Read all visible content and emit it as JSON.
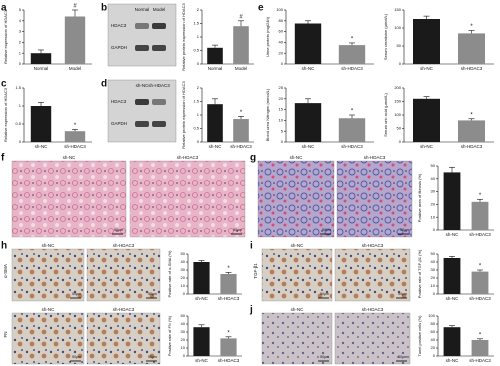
{
  "figure": {
    "panel_letters": [
      "a",
      "b",
      "c",
      "d",
      "e",
      "f",
      "g",
      "h",
      "i",
      "j"
    ],
    "blots": [
      {
        "columns": [
          "Normal",
          "Model"
        ],
        "rows": [
          "HDAC3",
          "GAPDH"
        ]
      },
      {
        "columns": [
          "sh-NC",
          "sh-HDAC3"
        ],
        "rows": [
          "HDAC3",
          "GAPDH"
        ]
      }
    ],
    "micrographs": [
      {
        "groups": [
          "sh-NC",
          "sh-HDAC3"
        ],
        "scale": "50μm"
      },
      {
        "groups": [
          "sh-NC",
          "sh-HDAC3"
        ],
        "scale": "50μm"
      },
      {
        "groups": [
          "sh-NC",
          "sh-HDAC3"
        ],
        "scale": "50μm",
        "row_label": "α-SMA"
      },
      {
        "groups": [
          "sh-NC",
          "sh-HDAC3"
        ],
        "scale": "50μm",
        "row_label": "FN"
      },
      {
        "groups": [
          "sh-NC",
          "sh-HDAC3"
        ],
        "scale": "50μm",
        "row_label": "TGF-β1"
      },
      {
        "groups": [
          "sh-NC",
          "sh-HDAC3"
        ],
        "scale": "50μm"
      }
    ]
  },
  "chart_data": [
    {
      "type": "bar",
      "ylabel": "Relative expression of HDAC3",
      "categories": [
        "Normal",
        "Model"
      ],
      "values": [
        1.0,
        4.4
      ],
      "errors": [
        0.3,
        0.6
      ],
      "colors": [
        "#1a1a1a",
        "#8c8c8c"
      ],
      "ylim": [
        0,
        5
      ],
      "yticks": [
        0,
        1,
        2,
        3,
        4,
        5
      ],
      "significance": "#"
    },
    {
      "type": "bar",
      "ylabel": "Relative protein expression of HDAC3",
      "categories": [
        "Normal",
        "Model"
      ],
      "values": [
        0.6,
        1.4
      ],
      "errors": [
        0.1,
        0.2
      ],
      "colors": [
        "#1a1a1a",
        "#8c8c8c"
      ],
      "ylim": [
        0,
        2
      ],
      "yticks": [
        0,
        0.5,
        1,
        1.5,
        2
      ],
      "significance": "#"
    },
    {
      "type": "bar",
      "ylabel": "Urine protein (mg/24h)",
      "categories": [
        "sh-NC",
        "sh-HDAC3"
      ],
      "values": [
        75,
        35
      ],
      "errors": [
        5,
        4
      ],
      "colors": [
        "#1a1a1a",
        "#8c8c8c"
      ],
      "ylim": [
        0,
        100
      ],
      "yticks": [
        0,
        20,
        40,
        60,
        80,
        100
      ],
      "significance": "*"
    },
    {
      "type": "bar",
      "ylabel": "Serum creatinine (μmol/L)",
      "categories": [
        "sh-NC",
        "sh-HDAC3"
      ],
      "values": [
        125,
        85
      ],
      "errors": [
        8,
        8
      ],
      "colors": [
        "#1a1a1a",
        "#8c8c8c"
      ],
      "ylim": [
        0,
        150
      ],
      "yticks": [
        0,
        50,
        100,
        150
      ],
      "significance": "*"
    },
    {
      "type": "bar",
      "ylabel": "Relative expression of HDAC3",
      "categories": [
        "sh-NC",
        "sh-HDAC3"
      ],
      "values": [
        1.0,
        0.3
      ],
      "errors": [
        0.1,
        0.05
      ],
      "colors": [
        "#1a1a1a",
        "#8c8c8c"
      ],
      "ylim": [
        0,
        1.5
      ],
      "yticks": [
        0,
        0.5,
        1,
        1.5
      ],
      "significance": "*"
    },
    {
      "type": "bar",
      "ylabel": "Relative protein expression of HDAC3",
      "categories": [
        "sh-NC",
        "sh-HDAC3"
      ],
      "values": [
        1.4,
        0.85
      ],
      "errors": [
        0.2,
        0.1
      ],
      "colors": [
        "#1a1a1a",
        "#8c8c8c"
      ],
      "ylim": [
        0,
        2
      ],
      "yticks": [
        0,
        0.5,
        1,
        1.5,
        2
      ],
      "significance": "*"
    },
    {
      "type": "bar",
      "ylabel": "Blood urea Nitrogen (mmol/L)",
      "categories": [
        "sh-NC",
        "sh-HDAC3"
      ],
      "values": [
        18,
        11
      ],
      "errors": [
        2,
        1.5
      ],
      "colors": [
        "#1a1a1a",
        "#8c8c8c"
      ],
      "ylim": [
        0,
        25
      ],
      "yticks": [
        0,
        5,
        10,
        15,
        20,
        25
      ],
      "significance": "*"
    },
    {
      "type": "bar",
      "ylabel": "Serum uric acid (μmol/L)",
      "categories": [
        "sh-NC",
        "sh-HDAC3"
      ],
      "values": [
        160,
        80
      ],
      "errors": [
        8,
        6
      ],
      "colors": [
        "#1a1a1a",
        "#8c8c8c"
      ],
      "ylim": [
        0,
        200
      ],
      "yticks": [
        0,
        50,
        100,
        150,
        200
      ],
      "significance": "*"
    },
    {
      "type": "bar",
      "ylabel": "Positive area of fibrosis (%)",
      "categories": [
        "sh-NC",
        "sh-HDAC3"
      ],
      "values": [
        45,
        22
      ],
      "errors": [
        4,
        2
      ],
      "colors": [
        "#1a1a1a",
        "#8c8c8c"
      ],
      "ylim": [
        0,
        50
      ],
      "yticks": [
        0,
        10,
        20,
        30,
        40,
        50
      ],
      "significance": "*"
    },
    {
      "type": "bar",
      "ylabel": "Positive rate of α-SMA (%)",
      "categories": [
        "sh-NC",
        "sh-HDAC3"
      ],
      "values": [
        40,
        25
      ],
      "errors": [
        2,
        2
      ],
      "colors": [
        "#1a1a1a",
        "#8c8c8c"
      ],
      "ylim": [
        0,
        50
      ],
      "yticks": [
        0,
        10,
        20,
        30,
        40,
        50
      ],
      "significance": "*"
    },
    {
      "type": "bar",
      "ylabel": "Positive rate of FN (%)",
      "categories": [
        "sh-NC",
        "sh-HDAC3"
      ],
      "values": [
        36,
        22
      ],
      "errors": [
        3,
        2
      ],
      "colors": [
        "#1a1a1a",
        "#8c8c8c"
      ],
      "ylim": [
        0,
        50
      ],
      "yticks": [
        0,
        10,
        20,
        30,
        40,
        50
      ],
      "significance": "*"
    },
    {
      "type": "bar",
      "ylabel": "Positive rate of TGF-β1 (%)",
      "categories": [
        "sh-NC",
        "sh-HDAC3"
      ],
      "values": [
        45,
        28
      ],
      "errors": [
        2,
        2
      ],
      "colors": [
        "#1a1a1a",
        "#8c8c8c"
      ],
      "ylim": [
        0,
        50
      ],
      "yticks": [
        0,
        10,
        20,
        30,
        40,
        50
      ],
      "significance": "*"
    },
    {
      "type": "bar",
      "ylabel": "Tunel positive cells (%)",
      "categories": [
        "sh-NC",
        "sh-HDAC3"
      ],
      "values": [
        72,
        40
      ],
      "errors": [
        4,
        3
      ],
      "colors": [
        "#1a1a1a",
        "#8c8c8c"
      ],
      "ylim": [
        0,
        100
      ],
      "yticks": [
        0,
        20,
        40,
        60,
        80,
        100
      ],
      "significance": "*"
    }
  ]
}
